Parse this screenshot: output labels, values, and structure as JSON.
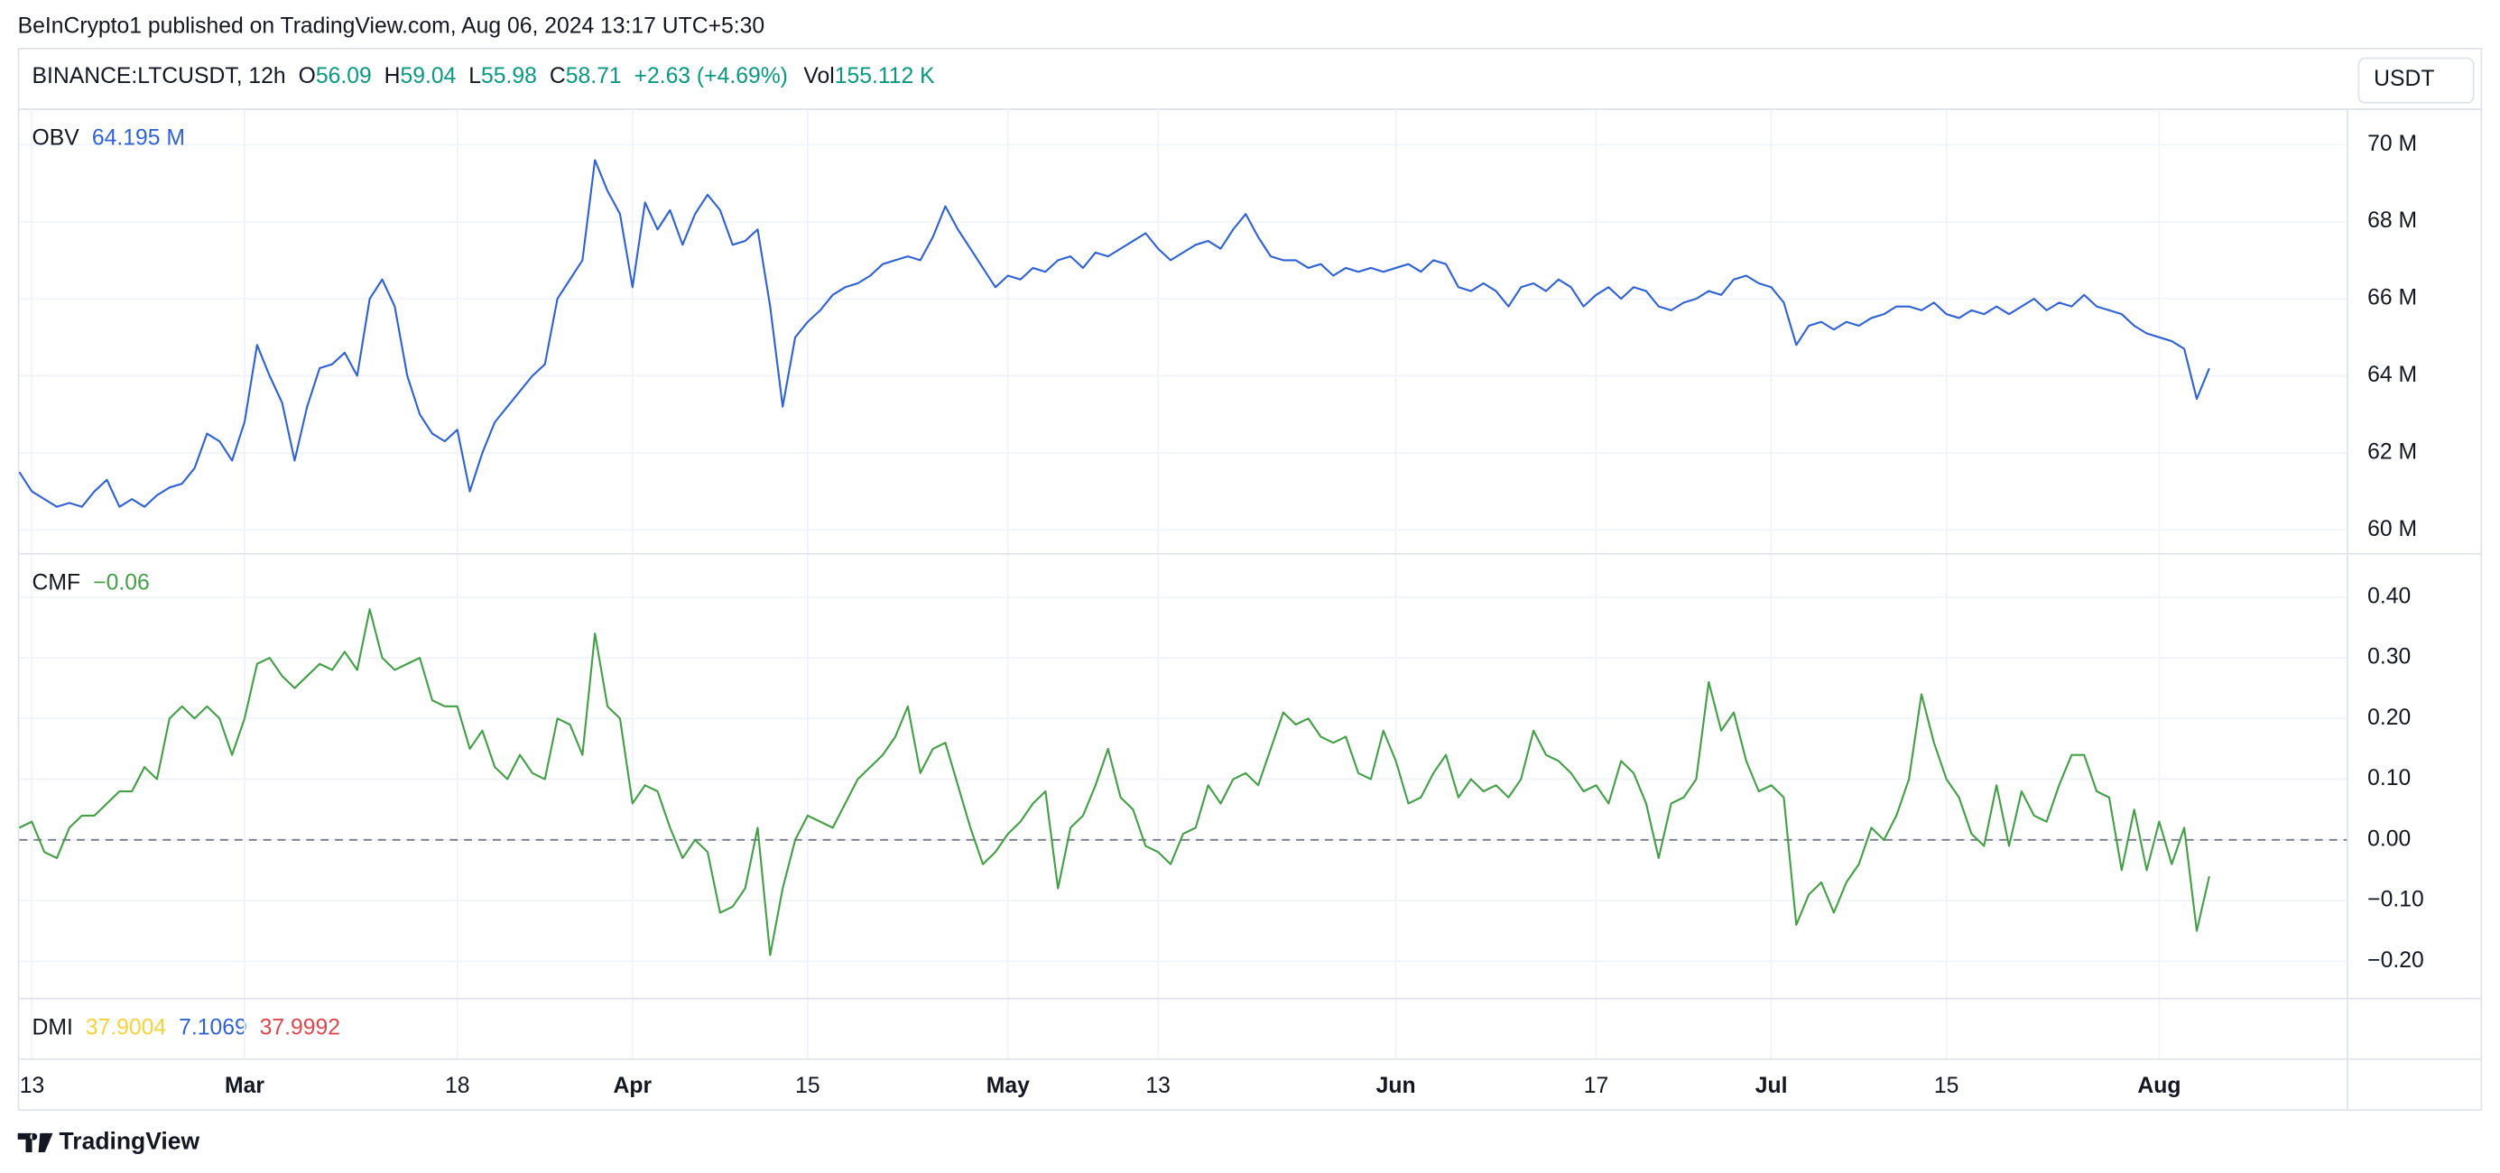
{
  "header": {
    "published": "BeInCrypto1 published on TradingView.com, Aug 06, 2024 13:17 UTC+5:30",
    "symbol": "BINANCE:LTCUSDT, 12h",
    "ohlc": [
      {
        "label": "O",
        "value": "56.09"
      },
      {
        "label": "H",
        "value": "59.04"
      },
      {
        "label": "L",
        "value": "55.98"
      },
      {
        "label": "C",
        "value": "58.71"
      }
    ],
    "change": "+2.63 (+4.69%)",
    "volume": {
      "label": "Vol",
      "value": "155.112 K"
    },
    "currency": "USDT"
  },
  "chart_data": [
    {
      "type": "line",
      "categories": [
        null,
        "13",
        null,
        null,
        null,
        null,
        null,
        null,
        null,
        null,
        null,
        null,
        null,
        null,
        null,
        null,
        null,
        null,
        "Mar",
        null,
        null,
        null,
        null,
        null,
        null,
        null,
        null,
        null,
        null,
        null,
        null,
        null,
        null,
        null,
        null,
        "18",
        null,
        null,
        null,
        null,
        null,
        null,
        null,
        null,
        null,
        null,
        null,
        null,
        null,
        "Apr",
        null,
        null,
        null,
        null,
        null,
        null,
        null,
        null,
        null,
        null,
        null,
        null,
        null,
        "15",
        null,
        null,
        null,
        null,
        null,
        null,
        null,
        null,
        null,
        null,
        null,
        null,
        null,
        null,
        null,
        "May",
        null,
        null,
        null,
        null,
        null,
        null,
        null,
        null,
        null,
        null,
        null,
        "13",
        null,
        null,
        null,
        null,
        null,
        null,
        null,
        null,
        null,
        null,
        null,
        null,
        null,
        null,
        null,
        null,
        null,
        null,
        "Jun",
        null,
        null,
        null,
        null,
        null,
        null,
        null,
        null,
        null,
        null,
        null,
        null,
        null,
        null,
        null,
        "17",
        null,
        null,
        null,
        null,
        null,
        null,
        null,
        null,
        null,
        null,
        null,
        null,
        null,
        "Jul",
        null,
        null,
        null,
        null,
        null,
        null,
        null,
        null,
        null,
        null,
        null,
        null,
        null,
        "15",
        null,
        null,
        null,
        null,
        null,
        null,
        null,
        null,
        null,
        null,
        null,
        null,
        null,
        null,
        null,
        null,
        "Aug",
        null,
        null,
        null,
        null
      ],
      "series": [
        {
          "name": "OBV",
          "color": "#2f62d6",
          "legend_value": "64.195 M",
          "values": [
            61.5,
            61.0,
            60.8,
            60.6,
            60.7,
            60.6,
            61.0,
            61.3,
            60.6,
            60.8,
            60.6,
            60.9,
            61.1,
            61.2,
            61.6,
            62.5,
            62.3,
            61.8,
            62.8,
            64.8,
            64.0,
            63.3,
            61.8,
            63.2,
            64.2,
            64.3,
            64.6,
            64.0,
            66.0,
            66.5,
            65.8,
            64.0,
            63.0,
            62.5,
            62.3,
            62.6,
            61.0,
            62.0,
            62.8,
            63.2,
            63.6,
            64.0,
            64.3,
            66.0,
            66.5,
            67.0,
            69.6,
            68.8,
            68.2,
            66.3,
            68.5,
            67.8,
            68.3,
            67.4,
            68.2,
            68.7,
            68.3,
            67.4,
            67.5,
            67.8,
            65.8,
            63.2,
            65.0,
            65.4,
            65.7,
            66.1,
            66.3,
            66.4,
            66.6,
            66.9,
            67.0,
            67.1,
            67.0,
            67.6,
            68.4,
            67.8,
            67.3,
            66.8,
            66.3,
            66.6,
            66.5,
            66.8,
            66.7,
            67.0,
            67.1,
            66.8,
            67.2,
            67.1,
            67.3,
            67.5,
            67.7,
            67.3,
            67.0,
            67.2,
            67.4,
            67.5,
            67.3,
            67.8,
            68.2,
            67.6,
            67.1,
            67.0,
            67.0,
            66.8,
            66.9,
            66.6,
            66.8,
            66.7,
            66.8,
            66.7,
            66.8,
            66.9,
            66.7,
            67.0,
            66.9,
            66.3,
            66.2,
            66.4,
            66.2,
            65.8,
            66.3,
            66.4,
            66.2,
            66.5,
            66.3,
            65.8,
            66.1,
            66.3,
            66.0,
            66.3,
            66.2,
            65.8,
            65.7,
            65.9,
            66.0,
            66.2,
            66.1,
            66.5,
            66.6,
            66.4,
            66.3,
            65.9,
            64.8,
            65.3,
            65.4,
            65.2,
            65.4,
            65.3,
            65.5,
            65.6,
            65.8,
            65.8,
            65.7,
            65.9,
            65.6,
            65.5,
            65.7,
            65.6,
            65.8,
            65.6,
            65.8,
            66.0,
            65.7,
            65.9,
            65.8,
            66.1,
            65.8,
            65.7,
            65.6,
            65.3,
            65.1,
            65.0,
            64.9,
            64.7,
            63.4,
            64.195
          ]
        }
      ],
      "ylim": [
        59.4,
        70.9
      ],
      "yticks": [
        {
          "value": 60,
          "label": "60 M"
        },
        {
          "value": 62,
          "label": "62 M"
        },
        {
          "value": 64,
          "label": "64 M"
        },
        {
          "value": 66,
          "label": "66 M"
        },
        {
          "value": 68,
          "label": "68 M"
        },
        {
          "value": 70,
          "label": "70 M"
        }
      ],
      "grid": true
    },
    {
      "type": "line",
      "series": [
        {
          "name": "CMF",
          "color": "#43a047",
          "legend_value": "−0.06",
          "values": [
            0.02,
            0.03,
            -0.02,
            -0.03,
            0.02,
            0.04,
            0.04,
            0.06,
            0.08,
            0.08,
            0.12,
            0.1,
            0.2,
            0.22,
            0.2,
            0.22,
            0.2,
            0.14,
            0.2,
            0.29,
            0.3,
            0.27,
            0.25,
            0.27,
            0.29,
            0.28,
            0.31,
            0.28,
            0.38,
            0.3,
            0.28,
            0.29,
            0.3,
            0.23,
            0.22,
            0.22,
            0.15,
            0.18,
            0.12,
            0.1,
            0.14,
            0.11,
            0.1,
            0.2,
            0.19,
            0.14,
            0.34,
            0.22,
            0.2,
            0.06,
            0.09,
            0.08,
            0.02,
            -0.03,
            0.0,
            -0.02,
            -0.12,
            -0.11,
            -0.08,
            0.02,
            -0.19,
            -0.08,
            0.0,
            0.04,
            0.03,
            0.02,
            0.06,
            0.1,
            0.12,
            0.14,
            0.17,
            0.22,
            0.11,
            0.15,
            0.16,
            0.09,
            0.02,
            -0.04,
            -0.02,
            0.01,
            0.03,
            0.06,
            0.08,
            -0.08,
            0.02,
            0.04,
            0.09,
            0.15,
            0.07,
            0.05,
            -0.01,
            -0.02,
            -0.04,
            0.01,
            0.02,
            0.09,
            0.06,
            0.1,
            0.11,
            0.09,
            0.15,
            0.21,
            0.19,
            0.2,
            0.17,
            0.16,
            0.17,
            0.11,
            0.1,
            0.18,
            0.13,
            0.06,
            0.07,
            0.11,
            0.14,
            0.07,
            0.1,
            0.08,
            0.09,
            0.07,
            0.1,
            0.18,
            0.14,
            0.13,
            0.11,
            0.08,
            0.09,
            0.06,
            0.13,
            0.11,
            0.06,
            -0.03,
            0.06,
            0.07,
            0.1,
            0.26,
            0.18,
            0.21,
            0.13,
            0.08,
            0.09,
            0.07,
            -0.14,
            -0.09,
            -0.07,
            -0.12,
            -0.07,
            -0.04,
            0.02,
            0.0,
            0.04,
            0.1,
            0.24,
            0.16,
            0.1,
            0.07,
            0.01,
            -0.01,
            0.09,
            -0.01,
            0.08,
            0.04,
            0.03,
            0.09,
            0.14,
            0.14,
            0.08,
            0.07,
            -0.05,
            0.05,
            -0.05,
            0.03,
            -0.04,
            0.02,
            -0.15,
            -0.06
          ]
        }
      ],
      "ylim": [
        -0.26,
        0.47
      ],
      "yticks": [
        {
          "value": -0.2,
          "label": "−0.20"
        },
        {
          "value": -0.1,
          "label": "−0.10"
        },
        {
          "value": 0,
          "label": "0.00"
        },
        {
          "value": 0.1,
          "label": "0.10"
        },
        {
          "value": 0.2,
          "label": "0.20"
        },
        {
          "value": 0.3,
          "label": "0.30"
        },
        {
          "value": 0.4,
          "label": "0.40"
        }
      ],
      "reference_line": 0,
      "grid": true
    }
  ],
  "dmi": {
    "name": "DMI",
    "values": [
      {
        "text": "37.9004",
        "color": "#f7d23a"
      },
      {
        "text": "7.1069",
        "color": "#2f62d6"
      },
      {
        "text": "37.9992",
        "color": "#e0474c"
      }
    ]
  },
  "footer": {
    "brand": "TradingView"
  }
}
